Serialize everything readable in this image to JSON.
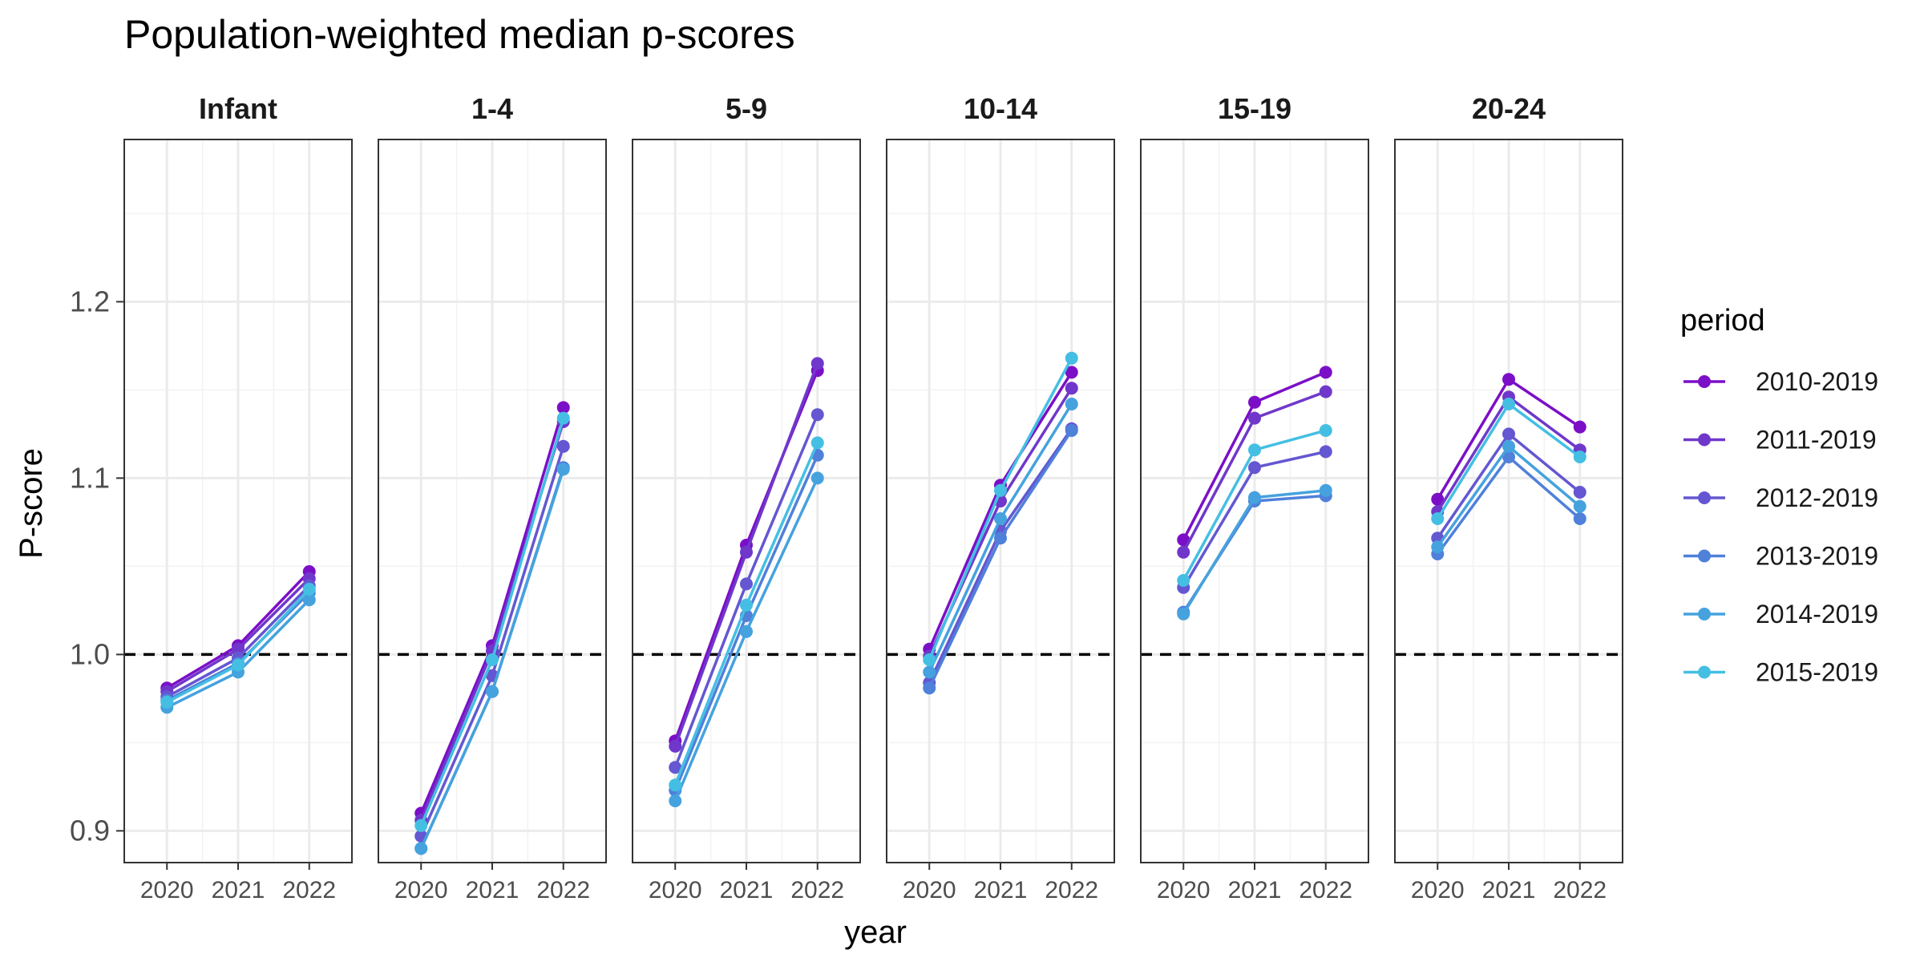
{
  "chart_data": {
    "type": "line",
    "title": "Population-weighted median p-scores",
    "xlabel": "year",
    "ylabel": "P-score",
    "x": [
      "2020",
      "2021",
      "2022"
    ],
    "yticks": [
      "0.9",
      "1.0",
      "1.1",
      "1.2"
    ],
    "ylim": [
      0.882,
      1.292
    ],
    "reference_line": 1.0,
    "grid": true,
    "legend": {
      "title": "period",
      "position": "right",
      "entries": [
        "2010-2019",
        "2011-2019",
        "2012-2019",
        "2013-2019",
        "2014-2019",
        "2015-2019"
      ],
      "colors": [
        "#7B0FC7",
        "#6F38CB",
        "#6457D1",
        "#4F80DA",
        "#45A2DE",
        "#44BFE3"
      ]
    },
    "panels": [
      {
        "label": "Infant",
        "series": [
          {
            "name": "2010-2019",
            "values": [
              0.981,
              1.005,
              1.047
            ]
          },
          {
            "name": "2011-2019",
            "values": [
              0.979,
              1.003,
              1.043
            ]
          },
          {
            "name": "2012-2019",
            "values": [
              0.976,
              0.998,
              1.039
            ]
          },
          {
            "name": "2013-2019",
            "values": [
              0.974,
              0.995,
              1.035
            ]
          },
          {
            "name": "2014-2019",
            "values": [
              0.97,
              0.99,
              1.031
            ]
          },
          {
            "name": "2015-2019",
            "values": [
              0.973,
              0.994,
              1.037
            ]
          }
        ]
      },
      {
        "label": "1-4",
        "series": [
          {
            "name": "2010-2019",
            "values": [
              0.91,
              1.005,
              1.14
            ]
          },
          {
            "name": "2011-2019",
            "values": [
              0.906,
              1.002,
              1.132
            ]
          },
          {
            "name": "2012-2019",
            "values": [
              0.897,
              0.988,
              1.118
            ]
          },
          {
            "name": "2013-2019",
            "values": [
              0.89,
              0.979,
              1.106
            ]
          },
          {
            "name": "2014-2019",
            "values": [
              0.89,
              0.979,
              1.105
            ]
          },
          {
            "name": "2015-2019",
            "values": [
              0.903,
              0.997,
              1.134
            ]
          }
        ]
      },
      {
        "label": "5-9",
        "series": [
          {
            "name": "2010-2019",
            "values": [
              0.951,
              1.062,
              1.161
            ]
          },
          {
            "name": "2011-2019",
            "values": [
              0.948,
              1.058,
              1.165
            ]
          },
          {
            "name": "2012-2019",
            "values": [
              0.936,
              1.04,
              1.136
            ]
          },
          {
            "name": "2013-2019",
            "values": [
              0.923,
              1.022,
              1.113
            ]
          },
          {
            "name": "2014-2019",
            "values": [
              0.917,
              1.013,
              1.1
            ]
          },
          {
            "name": "2015-2019",
            "values": [
              0.926,
              1.028,
              1.12
            ]
          }
        ]
      },
      {
        "label": "10-14",
        "series": [
          {
            "name": "2010-2019",
            "values": [
              1.003,
              1.096,
              1.16
            ]
          },
          {
            "name": "2011-2019",
            "values": [
              0.999,
              1.087,
              1.151
            ]
          },
          {
            "name": "2012-2019",
            "values": [
              0.984,
              1.07,
              1.128
            ]
          },
          {
            "name": "2013-2019",
            "values": [
              0.981,
              1.066,
              1.127
            ]
          },
          {
            "name": "2014-2019",
            "values": [
              0.99,
              1.077,
              1.142
            ]
          },
          {
            "name": "2015-2019",
            "values": [
              0.997,
              1.093,
              1.168
            ]
          }
        ]
      },
      {
        "label": "15-19",
        "series": [
          {
            "name": "2010-2019",
            "values": [
              1.065,
              1.143,
              1.16
            ]
          },
          {
            "name": "2011-2019",
            "values": [
              1.058,
              1.134,
              1.149
            ]
          },
          {
            "name": "2012-2019",
            "values": [
              1.038,
              1.106,
              1.115
            ]
          },
          {
            "name": "2013-2019",
            "values": [
              1.024,
              1.087,
              1.09
            ]
          },
          {
            "name": "2014-2019",
            "values": [
              1.023,
              1.089,
              1.093
            ]
          },
          {
            "name": "2015-2019",
            "values": [
              1.042,
              1.116,
              1.127
            ]
          }
        ]
      },
      {
        "label": "20-24",
        "series": [
          {
            "name": "2010-2019",
            "values": [
              1.088,
              1.156,
              1.129
            ]
          },
          {
            "name": "2011-2019",
            "values": [
              1.081,
              1.146,
              1.116
            ]
          },
          {
            "name": "2012-2019",
            "values": [
              1.066,
              1.125,
              1.092
            ]
          },
          {
            "name": "2013-2019",
            "values": [
              1.057,
              1.112,
              1.077
            ]
          },
          {
            "name": "2014-2019",
            "values": [
              1.061,
              1.118,
              1.084
            ]
          },
          {
            "name": "2015-2019",
            "values": [
              1.077,
              1.142,
              1.112
            ]
          }
        ]
      }
    ]
  }
}
